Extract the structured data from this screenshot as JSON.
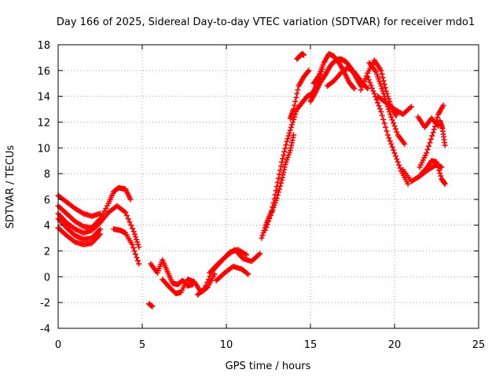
{
  "chart_data": {
    "type": "scatter",
    "title": "Day 166 of 2025, Sidereal Day-to-day VTEC variation (SDTVAR) for receiver mdo1",
    "xlabel": "GPS time / hours",
    "ylabel": "SDTVAR / TECUs",
    "xlim": [
      0,
      25
    ],
    "ylim": [
      -4,
      18
    ],
    "xticks": [
      "0",
      "5",
      "10",
      "15",
      "20",
      "25"
    ],
    "yticks": [
      "-4",
      "-2",
      "0",
      "2",
      "4",
      "6",
      "8",
      "10",
      "12",
      "14",
      "16",
      "18"
    ],
    "grid": true,
    "marker": "+",
    "series_color": "#ff0000",
    "tracks": [
      {
        "x": [
          0.0,
          0.5,
          1.0,
          1.5,
          2.0,
          2.5
        ],
        "y": [
          6.3,
          5.8,
          5.3,
          4.9,
          4.7,
          4.9
        ]
      },
      {
        "x": [
          0.0,
          0.5,
          1.0,
          1.5,
          2.0,
          2.5,
          3.0,
          3.3,
          3.6,
          4.0,
          4.3
        ],
        "y": [
          5.5,
          4.9,
          4.3,
          3.9,
          3.8,
          4.5,
          5.7,
          6.6,
          6.9,
          6.8,
          6.0
        ]
      },
      {
        "x": [
          0.0,
          0.5,
          1.0,
          1.5,
          2.0,
          2.5,
          3.0,
          3.5,
          4.0,
          4.5,
          4.8
        ],
        "y": [
          4.9,
          4.2,
          3.7,
          3.4,
          3.6,
          4.2,
          5.0,
          5.5,
          5.0,
          3.5,
          2.3
        ]
      },
      {
        "x": [
          0.0,
          0.5,
          1.0,
          1.5,
          2.0,
          2.5
        ],
        "y": [
          4.5,
          3.8,
          3.2,
          2.9,
          3.0,
          3.7
        ]
      },
      {
        "x": [
          0.0,
          0.5,
          1.0,
          1.5,
          2.0,
          2.5
        ],
        "y": [
          3.8,
          3.2,
          2.7,
          2.5,
          2.6,
          3.3
        ]
      },
      {
        "x": [
          3.3,
          3.7,
          4.0,
          4.4,
          4.8
        ],
        "y": [
          3.7,
          3.6,
          3.4,
          2.5,
          1.0
        ]
      },
      {
        "x": [
          5.4,
          5.6
        ],
        "y": [
          -2.1,
          -2.3
        ]
      },
      {
        "x": [
          5.5,
          5.9,
          6.2,
          6.5,
          6.8,
          7.1,
          7.4,
          7.7,
          8.0
        ],
        "y": [
          1.0,
          0.3,
          1.3,
          0.4,
          -0.5,
          -0.6,
          -0.3,
          -0.7,
          -0.6
        ]
      },
      {
        "x": [
          6.2,
          6.6,
          7.0,
          7.3,
          7.7,
          8.1,
          8.5,
          8.9,
          9.3
        ],
        "y": [
          -0.2,
          -0.8,
          -1.3,
          -1.2,
          -0.2,
          -0.4,
          -1.2,
          -0.8,
          0.2
        ]
      },
      {
        "x": [
          8.3,
          8.7,
          9.2,
          9.7,
          10.2,
          10.7,
          11.2
        ],
        "y": [
          -1.4,
          -0.9,
          0.5,
          1.2,
          1.9,
          2.1,
          1.7
        ]
      },
      {
        "x": [
          9.0,
          9.5,
          10.0,
          10.5,
          11.0,
          11.5,
          12.0
        ],
        "y": [
          0.3,
          1.0,
          1.6,
          2.1,
          1.4,
          1.2,
          1.8
        ]
      },
      {
        "x": [
          9.4,
          9.9,
          10.4,
          10.9,
          11.3
        ],
        "y": [
          -0.3,
          0.3,
          0.8,
          0.6,
          0.2
        ]
      },
      {
        "x": [
          12.1,
          12.4,
          12.7,
          13.0,
          13.3,
          13.6,
          13.9,
          14.2,
          14.5,
          14.8,
          15.1,
          15.4,
          15.7
        ],
        "y": [
          3.0,
          4.2,
          5.1,
          7.0,
          8.9,
          10.5,
          11.8,
          13.0,
          13.5,
          14.0,
          14.2,
          14.9,
          16.1
        ]
      },
      {
        "x": [
          12.3,
          12.7,
          13.0,
          13.3,
          13.5,
          13.8,
          14.0
        ],
        "y": [
          3.6,
          5.0,
          6.1,
          7.5,
          8.7,
          9.8,
          11.0
        ]
      },
      {
        "x": [
          13.8,
          14.0,
          14.3,
          14.6,
          14.9
        ],
        "y": [
          12.3,
          13.0,
          14.8,
          15.5,
          16.0
        ]
      },
      {
        "x": [
          14.2,
          14.5,
          14.6
        ],
        "y": [
          16.9,
          17.3,
          17.2
        ]
      },
      {
        "x": [
          15.0,
          15.3,
          15.6,
          15.9,
          16.2,
          16.5,
          16.8,
          17.1,
          17.4,
          17.7,
          18.0
        ],
        "y": [
          13.6,
          14.3,
          15.1,
          15.7,
          16.4,
          16.8,
          16.9,
          16.7,
          16.2,
          15.5,
          14.8
        ]
      },
      {
        "x": [
          15.2,
          15.5,
          15.8,
          16.1,
          16.4,
          16.7,
          17.0,
          17.3,
          17.6
        ],
        "y": [
          15.0,
          15.6,
          16.6,
          17.3,
          17.1,
          16.6,
          15.9,
          15.1,
          14.6
        ]
      },
      {
        "x": [
          16.0,
          16.4,
          16.8,
          17.2,
          17.6,
          18.0,
          18.4
        ],
        "y": [
          14.8,
          15.2,
          15.8,
          16.2,
          15.9,
          15.2,
          14.6
        ]
      },
      {
        "x": [
          18.0,
          18.4,
          18.8,
          19.2,
          19.5,
          19.8,
          20.1
        ],
        "y": [
          14.5,
          15.8,
          16.8,
          16.0,
          14.4,
          13.2,
          12.5
        ]
      },
      {
        "x": [
          18.5,
          18.9,
          19.2,
          19.5,
          19.8,
          20.2,
          20.6
        ],
        "y": [
          16.6,
          15.9,
          14.8,
          13.6,
          12.4,
          11.0,
          10.3
        ]
      },
      {
        "x": [
          18.4,
          18.8,
          19.2,
          19.6,
          20.0,
          20.4,
          20.8
        ],
        "y": [
          15.5,
          14.2,
          12.8,
          11.0,
          9.6,
          8.2,
          7.2
        ]
      },
      {
        "x": [
          19.0,
          19.5,
          20.0,
          20.5,
          21.0
        ],
        "y": [
          14.0,
          13.5,
          13.0,
          12.6,
          13.2
        ]
      },
      {
        "x": [
          20.5,
          21.0,
          21.5,
          22.0,
          22.5,
          22.8
        ],
        "y": [
          8.3,
          7.4,
          7.8,
          8.3,
          8.7,
          8.5
        ]
      },
      {
        "x": [
          21.5,
          21.9,
          22.3,
          22.6,
          22.9
        ],
        "y": [
          8.5,
          9.6,
          11.2,
          12.6,
          13.3
        ]
      },
      {
        "x": [
          21.6,
          21.9,
          22.2,
          22.5,
          22.8,
          23.0
        ],
        "y": [
          8.0,
          8.4,
          9.0,
          8.9,
          7.6,
          7.2
        ]
      },
      {
        "x": [
          21.4,
          21.8,
          22.2,
          22.6
        ],
        "y": [
          12.4,
          11.6,
          12.3,
          11.7
        ]
      },
      {
        "x": [
          22.7,
          22.85,
          23.0
        ],
        "y": [
          12.1,
          11.5,
          10.2
        ]
      }
    ]
  }
}
